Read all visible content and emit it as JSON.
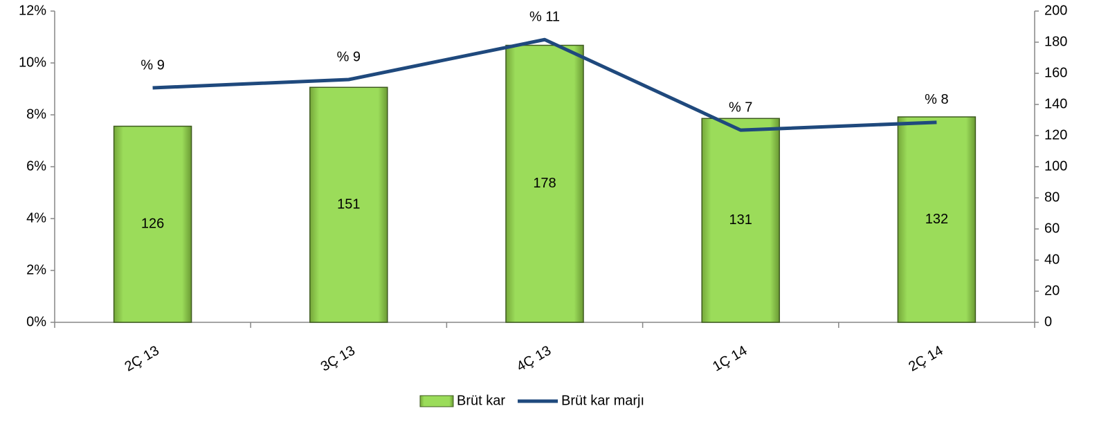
{
  "chart_data": {
    "type": "bar",
    "categories": [
      "2Ç 13",
      "3Ç 13",
      "4Ç 13",
      "1Ç 14",
      "2Ç 14"
    ],
    "series": [
      {
        "name": "Brüt kar",
        "type": "bar",
        "axis": "y2",
        "color": "#92d050",
        "values": [
          126,
          151,
          178,
          131,
          132
        ]
      },
      {
        "name": "Brüt kar marjı",
        "type": "line",
        "color": "#1f497d",
        "values": [
          9.04,
          9.36,
          10.9,
          7.41,
          7.71
        ],
        "value_labels": [
          "% 9",
          "% 9",
          "% 11",
          "% 7",
          "% 8"
        ]
      }
    ],
    "ylim": [
      0,
      12
    ],
    "yticks": [
      {
        "value": 0,
        "label": "0%"
      },
      {
        "value": 2,
        "label": "2%"
      },
      {
        "value": 4,
        "label": "4%"
      },
      {
        "value": 6,
        "label": "6%"
      },
      {
        "value": 8,
        "label": "8%"
      },
      {
        "value": 10,
        "label": "10%"
      },
      {
        "value": 12,
        "label": "12%"
      }
    ],
    "y2lim": [
      0,
      200
    ],
    "y2ticks": [
      0,
      20,
      40,
      60,
      80,
      100,
      120,
      140,
      160,
      180,
      200
    ],
    "legend": "bottom"
  }
}
